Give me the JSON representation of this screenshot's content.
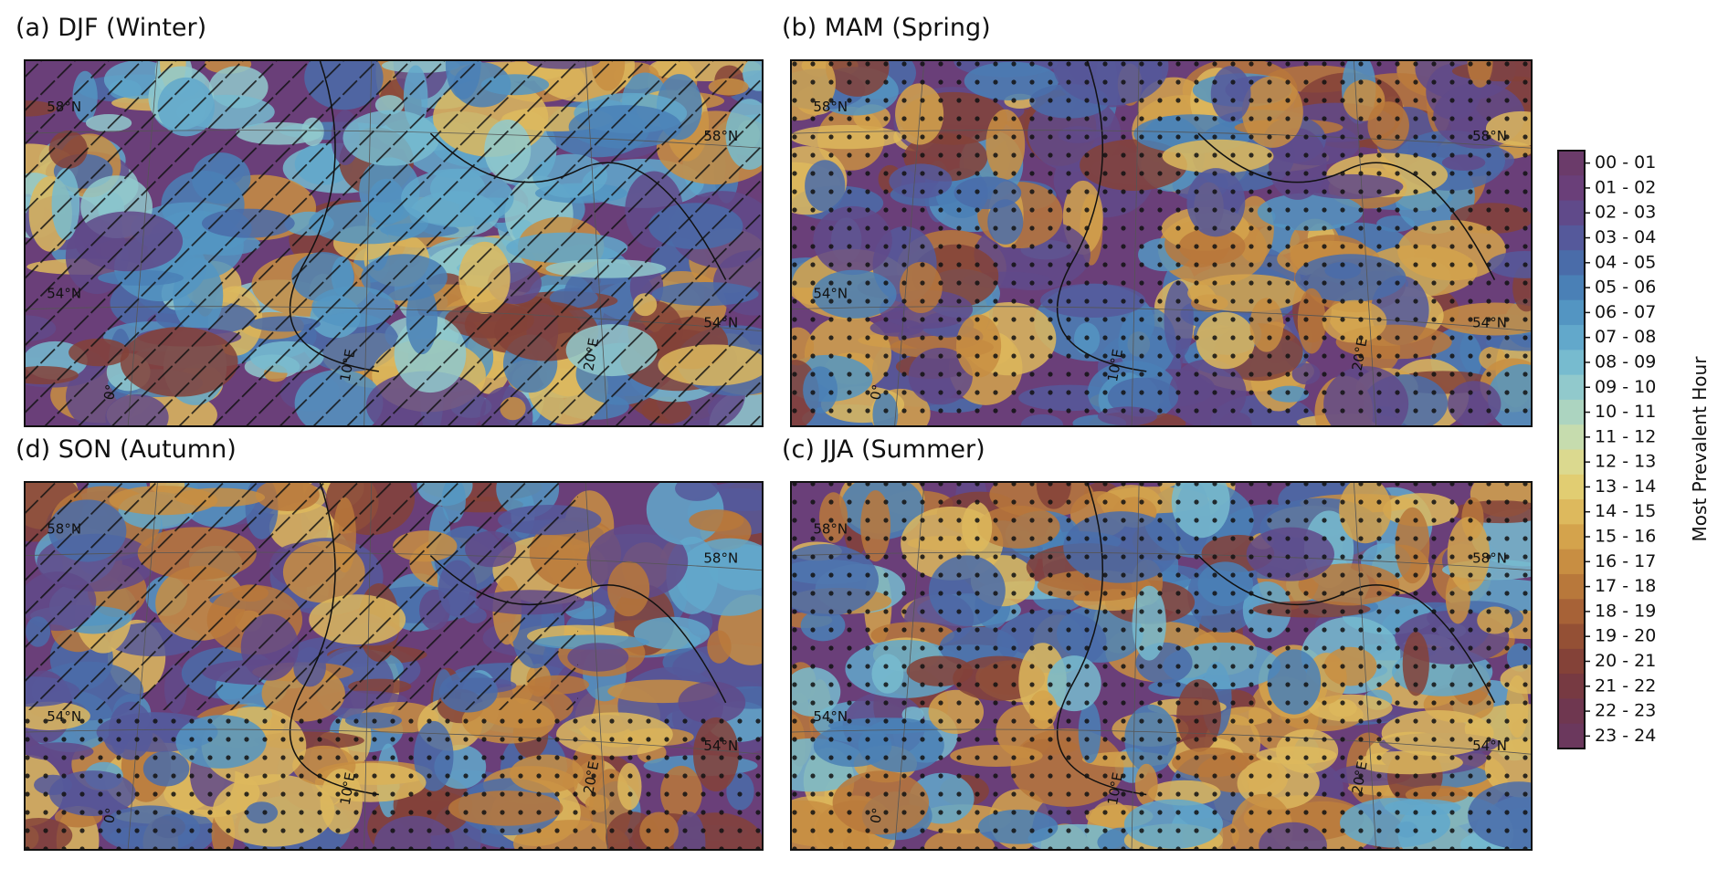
{
  "panels": [
    {
      "title": "(a) DJF (Winter)",
      "grid_labels": [
        "58°N",
        "58°N",
        "54°N",
        "54°N",
        "0°",
        "10°E",
        "20°E"
      ]
    },
    {
      "title": "(b) MAM (Spring)",
      "grid_labels": [
        "58°N",
        "58°N",
        "54°N",
        "54°N",
        "0°",
        "10°E",
        "20°E"
      ]
    },
    {
      "title": "(d) SON (Autumn)",
      "grid_labels": [
        "58°N",
        "58°N",
        "54°N",
        "54°N",
        "0°",
        "10°E",
        "20°E"
      ]
    },
    {
      "title": "(c) JJA (Summer)",
      "grid_labels": [
        "58°N",
        "58°N",
        "54°N",
        "54°N",
        "0°",
        "10°E",
        "20°E"
      ]
    }
  ],
  "colorbar": {
    "label": "Most Prevalent Hour",
    "bins": [
      "00 - 01",
      "01 - 02",
      "02 - 03",
      "03 - 04",
      "04 - 05",
      "05 - 06",
      "06 - 07",
      "07 - 08",
      "08 - 09",
      "09 - 10",
      "10 - 11",
      "11 - 12",
      "12 - 13",
      "13 - 14",
      "14 - 15",
      "15 - 16",
      "16 - 17",
      "17 - 18",
      "18 - 19",
      "19 - 20",
      "20 - 21",
      "21 - 22",
      "22 - 23",
      "23 - 24"
    ],
    "colors": [
      "#6b3b6a",
      "#6a3f79",
      "#604a8a",
      "#55599b",
      "#4a6ca9",
      "#4a80b6",
      "#5395c2",
      "#62a8cb",
      "#77bbcf",
      "#91c9cc",
      "#acd4c0",
      "#c6dcae",
      "#dbd98f",
      "#e1cd72",
      "#ddb95d",
      "#d4a34c",
      "#c88e42",
      "#b8783b",
      "#a76237",
      "#945035",
      "#844238",
      "#773a42",
      "#6f3750",
      "#6b385d"
    ]
  }
}
